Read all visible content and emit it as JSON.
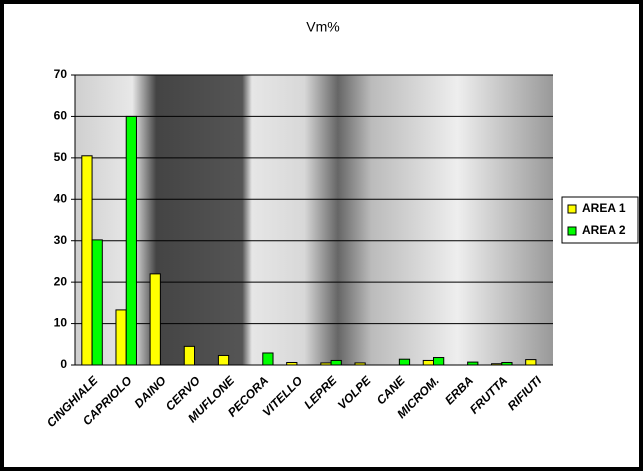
{
  "chart_data": {
    "type": "bar",
    "title": "Vm%",
    "categories": [
      "CINGHIALE",
      "CAPRIOLO",
      "DAINO",
      "CERVO",
      "MUFLONE",
      "PECORA",
      "VITELLO",
      "LEPRE",
      "VOLPE",
      "CANE",
      "MICROM.",
      "ERBA",
      "FRUTTA",
      "RIFIUTI"
    ],
    "series": [
      {
        "name": "AREA 1",
        "color": "#ffff00",
        "values": [
          50.5,
          13.3,
          22,
          4.5,
          2.3,
          0,
          0.6,
          0.5,
          0.5,
          0,
          1.1,
          0,
          0.3,
          1.3
        ]
      },
      {
        "name": "AREA 2",
        "color": "#00ff00",
        "values": [
          30.2,
          60,
          0,
          0,
          0,
          2.9,
          0,
          1.1,
          0,
          1.4,
          1.8,
          0.7,
          0.6,
          0
        ]
      }
    ],
    "ylim": [
      0,
      70
    ],
    "yticks": [
      0,
      10,
      20,
      30,
      40,
      50,
      60,
      70
    ],
    "grid": true,
    "legend": "right"
  }
}
